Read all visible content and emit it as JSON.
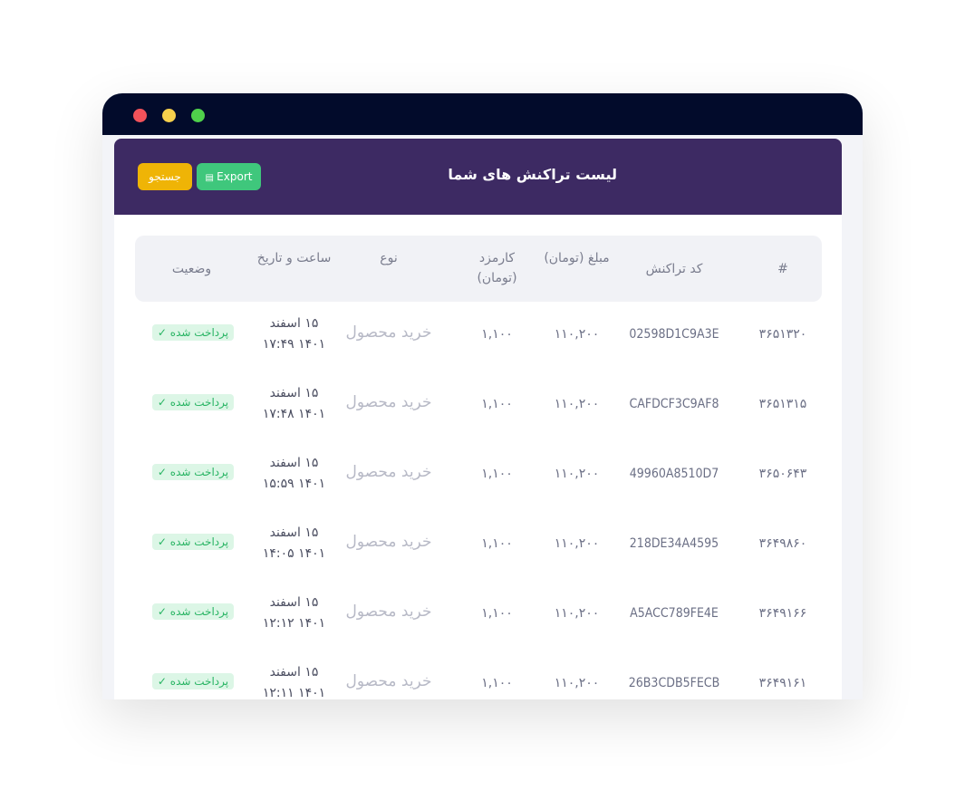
{
  "header": {
    "title": "لیست تراکنش های شما",
    "export_button": "Export",
    "search_button": "جستجو"
  },
  "table": {
    "columns": [
      "#",
      "کد تراکنش",
      "مبلغ (تومان)",
      "کارمزد (تومان)",
      "نوع",
      "ساعت و تاریخ",
      "وضعیت"
    ],
    "rows": [
      {
        "id": "۳۶۵۱۳۲۰",
        "code": "02598D1C9A3E",
        "amount": "۱۱۰,۲۰۰",
        "fee": "۱,۱۰۰",
        "type": "خرید محصول",
        "date": "۱۵ اسفند",
        "time": "۱۴۰۱ ۱۷:۴۹",
        "status": "پرداخت شده"
      },
      {
        "id": "۳۶۵۱۳۱۵",
        "code": "CAFDCF3C9AF8",
        "amount": "۱۱۰,۲۰۰",
        "fee": "۱,۱۰۰",
        "type": "خرید محصول",
        "date": "۱۵ اسفند",
        "time": "۱۴۰۱ ۱۷:۴۸",
        "status": "پرداخت شده"
      },
      {
        "id": "۳۶۵۰۶۴۳",
        "code": "49960A8510D7",
        "amount": "۱۱۰,۲۰۰",
        "fee": "۱,۱۰۰",
        "type": "خرید محصول",
        "date": "۱۵ اسفند",
        "time": "۱۴۰۱ ۱۵:۵۹",
        "status": "پرداخت شده"
      },
      {
        "id": "۳۶۴۹۸۶۰",
        "code": "218DE34A4595",
        "amount": "۱۱۰,۲۰۰",
        "fee": "۱,۱۰۰",
        "type": "خرید محصول",
        "date": "۱۵ اسفند",
        "time": "۱۴۰۱ ۱۴:۰۵",
        "status": "پرداخت شده"
      },
      {
        "id": "۳۶۴۹۱۶۶",
        "code": "A5ACC789FE4E",
        "amount": "۱۱۰,۲۰۰",
        "fee": "۱,۱۰۰",
        "type": "خرید محصول",
        "date": "۱۵ اسفند",
        "time": "۱۴۰۱ ۱۲:۱۲",
        "status": "پرداخت شده"
      },
      {
        "id": "۳۶۴۹۱۶۱",
        "code": "26B3CDB5FECB",
        "amount": "۱۱۰,۲۰۰",
        "fee": "۱,۱۰۰",
        "type": "خرید محصول",
        "date": "۱۵ اسفند",
        "time": "۱۴۰۱ ۱۲:۱۱",
        "status": "پرداخت شده"
      }
    ]
  }
}
